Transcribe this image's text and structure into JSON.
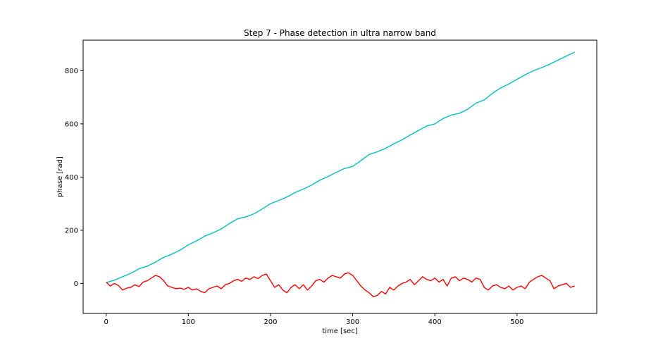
{
  "chart_data": {
    "type": "line",
    "title": "Step 7 - Phase detection in ultra narrow band",
    "xlabel": "time [sec]",
    "ylabel": "phase [rad]",
    "xlim": [
      -28,
      597
    ],
    "ylim": [
      -113,
      915
    ],
    "xticks": [
      0,
      100,
      200,
      300,
      400,
      500
    ],
    "yticks": [
      0,
      200,
      400,
      600,
      800
    ],
    "grid": false,
    "series": [
      {
        "color": "#00bfbf",
        "x": [
          0,
          10,
          20,
          30,
          40,
          50,
          60,
          70,
          80,
          90,
          100,
          110,
          120,
          130,
          140,
          150,
          160,
          170,
          180,
          190,
          200,
          210,
          220,
          230,
          240,
          250,
          260,
          270,
          280,
          290,
          300,
          310,
          320,
          330,
          340,
          350,
          360,
          370,
          380,
          390,
          400,
          410,
          420,
          430,
          440,
          450,
          460,
          470,
          480,
          490,
          500,
          510,
          520,
          530,
          540,
          550,
          560,
          570
        ],
        "y": [
          3,
          12,
          25,
          38,
          55,
          65,
          80,
          98,
          110,
          125,
          145,
          160,
          178,
          190,
          205,
          225,
          243,
          250,
          262,
          280,
          300,
          312,
          325,
          342,
          355,
          370,
          388,
          402,
          418,
          432,
          440,
          462,
          485,
          495,
          508,
          525,
          540,
          558,
          575,
          592,
          600,
          620,
          633,
          640,
          655,
          678,
          690,
          715,
          735,
          750,
          768,
          785,
          800,
          812,
          825,
          840,
          855,
          870
        ]
      },
      {
        "color": "#ff0000",
        "x": [
          0,
          5,
          10,
          15,
          20,
          25,
          30,
          35,
          40,
          45,
          50,
          55,
          60,
          65,
          70,
          75,
          80,
          85,
          90,
          95,
          100,
          105,
          110,
          115,
          120,
          125,
          130,
          135,
          140,
          145,
          150,
          155,
          160,
          165,
          170,
          175,
          180,
          185,
          190,
          195,
          200,
          205,
          210,
          215,
          220,
          225,
          230,
          235,
          240,
          245,
          250,
          255,
          260,
          265,
          270,
          275,
          280,
          285,
          290,
          295,
          300,
          305,
          310,
          315,
          320,
          325,
          330,
          335,
          340,
          345,
          350,
          355,
          360,
          365,
          370,
          375,
          380,
          385,
          390,
          395,
          400,
          405,
          410,
          415,
          420,
          425,
          430,
          435,
          440,
          445,
          450,
          455,
          460,
          465,
          470,
          475,
          480,
          485,
          490,
          495,
          500,
          505,
          510,
          515,
          520,
          525,
          530,
          535,
          540,
          545,
          550,
          555,
          560,
          565,
          570
        ],
        "y": [
          5,
          -10,
          0,
          -8,
          -25,
          -18,
          -15,
          -5,
          -12,
          5,
          10,
          20,
          30,
          25,
          10,
          -10,
          -15,
          -20,
          -18,
          -22,
          -15,
          -25,
          -20,
          -30,
          -35,
          -20,
          -15,
          -10,
          -20,
          -5,
          0,
          10,
          15,
          8,
          20,
          15,
          25,
          18,
          30,
          35,
          10,
          -15,
          -5,
          -25,
          -35,
          -15,
          -5,
          -20,
          -5,
          -25,
          -10,
          10,
          15,
          5,
          20,
          30,
          25,
          20,
          35,
          40,
          30,
          10,
          -10,
          -25,
          -35,
          -50,
          -45,
          -30,
          -40,
          -15,
          -25,
          -10,
          0,
          5,
          15,
          -5,
          10,
          25,
          15,
          10,
          20,
          5,
          15,
          -10,
          20,
          25,
          10,
          20,
          15,
          5,
          20,
          15,
          -15,
          -25,
          -10,
          -5,
          -15,
          -20,
          -10,
          -25,
          -15,
          -10,
          -20,
          5,
          15,
          25,
          30,
          20,
          10,
          -20,
          -10,
          -5,
          0,
          -15,
          -10
        ]
      }
    ]
  }
}
